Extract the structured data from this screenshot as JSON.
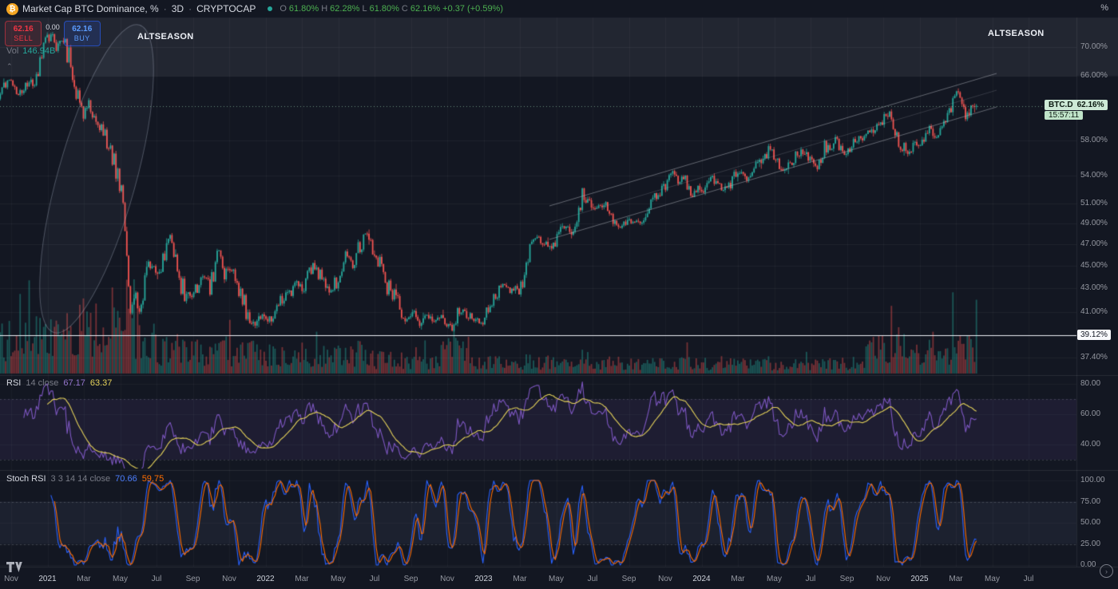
{
  "toolbar": {
    "logo_glyph": "₿",
    "symbol_title": "Market Cap BTC Dominance, %",
    "separator": "·",
    "interval": "3D",
    "exchange": "CRYPTOCAP",
    "ohlc": {
      "o_label": "O",
      "o": "61.80%",
      "h_label": "H",
      "h": "62.28%",
      "l_label": "L",
      "l": "61.80%",
      "c_label": "C",
      "c": "62.16%",
      "change": "+0.37 (+0.59%)"
    }
  },
  "trade_widget": {
    "sell_price": "62.16",
    "sell_label": "SELL",
    "spread": "0.00",
    "buy_price": "62.16",
    "buy_label": "BUY"
  },
  "volume_label": {
    "name": "Vol",
    "value": "146.94B"
  },
  "annotations": {
    "altseason_left": "ALTSEASON",
    "altseason_right": "ALTSEASON",
    "hline_label": "39.12%"
  },
  "price_label": {
    "symbol": "BTC.D",
    "price": "62.16%",
    "countdown": "15:57:11"
  },
  "rsi": {
    "title": "RSI",
    "params": "14 close",
    "value": "67.17",
    "ma_value": "63.37"
  },
  "stoch": {
    "title": "Stoch RSI",
    "params": "3 3 14 14 close",
    "value": "70.66",
    "ma_value": "59.75"
  },
  "axis": {
    "percent_button": "%"
  },
  "chart_data": {
    "type": "candlestick",
    "title": "Market Cap BTC Dominance",
    "interval": "3D",
    "exchange": "CRYPTOCAP",
    "scale": "log",
    "bar_months": 0.0995,
    "t_end": 53.2,
    "current_close": 62.16,
    "band_above": 66,
    "hline": 39.12,
    "ylim": [
      36.1,
      74.3
    ],
    "colors": {
      "up": "#26a69a",
      "down": "#ef5350",
      "volume_up": "rgba(38,166,154,0.45)",
      "volume_down": "rgba(239,83,80,0.45)",
      "rsi": "#7e57c2",
      "rsi_ma": "#e6d35a",
      "stoch_k": "#2962ff",
      "stoch_d": "#ff6d00",
      "price_line": "rgba(150,205,168,0.65)",
      "hline_color": "#eceff5",
      "channel": "rgba(178,181,190,0.5)",
      "band": "rgba(238,242,250,0.07)",
      "ellipse": "rgba(185,195,215,0.35)"
    },
    "ticks": {
      "price": [
        {
          "label": "70.00%",
          "v": 70
        },
        {
          "label": "66.00%",
          "v": 66
        },
        {
          "label": "58.00%",
          "v": 58
        },
        {
          "label": "54.00%",
          "v": 54
        },
        {
          "label": "51.00%",
          "v": 51
        },
        {
          "label": "49.00%",
          "v": 49
        },
        {
          "label": "47.00%",
          "v": 47
        },
        {
          "label": "45.00%",
          "v": 45
        },
        {
          "label": "43.00%",
          "v": 43
        },
        {
          "label": "41.00%",
          "v": 41
        },
        {
          "label": "37.40%",
          "v": 37.4
        }
      ],
      "rsi": [
        {
          "label": "80.00",
          "v": 80
        },
        {
          "label": "60.00",
          "v": 60
        },
        {
          "label": "40.00",
          "v": 40
        }
      ],
      "stoch": [
        {
          "label": "100.00",
          "v": 100
        },
        {
          "label": "75.00",
          "v": 75
        },
        {
          "label": "50.00",
          "v": 50
        },
        {
          "label": "25.00",
          "v": 25
        },
        {
          "label": "0.00",
          "v": 0
        }
      ],
      "time": [
        {
          "label": "Nov",
          "t": 0
        },
        {
          "label": "2021",
          "t": 2,
          "major": true
        },
        {
          "label": "Mar",
          "t": 4
        },
        {
          "label": "May",
          "t": 6
        },
        {
          "label": "Jul",
          "t": 8
        },
        {
          "label": "Sep",
          "t": 10
        },
        {
          "label": "Nov",
          "t": 12
        },
        {
          "label": "2022",
          "t": 14,
          "major": true
        },
        {
          "label": "Mar",
          "t": 16
        },
        {
          "label": "May",
          "t": 18
        },
        {
          "label": "Jul",
          "t": 20
        },
        {
          "label": "Sep",
          "t": 22
        },
        {
          "label": "Nov",
          "t": 24
        },
        {
          "label": "2023",
          "t": 26,
          "major": true
        },
        {
          "label": "Mar",
          "t": 28
        },
        {
          "label": "May",
          "t": 30
        },
        {
          "label": "Jul",
          "t": 32
        },
        {
          "label": "Sep",
          "t": 34
        },
        {
          "label": "Nov",
          "t": 36
        },
        {
          "label": "2024",
          "t": 38,
          "major": true
        },
        {
          "label": "Mar",
          "t": 40
        },
        {
          "label": "May",
          "t": 42
        },
        {
          "label": "Jul",
          "t": 44
        },
        {
          "label": "Sep",
          "t": 46
        },
        {
          "label": "Nov",
          "t": 48
        },
        {
          "label": "2025",
          "t": 50,
          "major": true
        },
        {
          "label": "Mar",
          "t": 52
        },
        {
          "label": "May",
          "t": 54
        },
        {
          "label": "Jul",
          "t": 56
        }
      ]
    },
    "price_anchors": [
      [
        -0.7,
        63.5
      ],
      [
        -0.3,
        65.0
      ],
      [
        0,
        65.5
      ],
      [
        0.4,
        63.8
      ],
      [
        0.8,
        64.6
      ],
      [
        1.2,
        65.5
      ],
      [
        1.6,
        68.0
      ],
      [
        2.0,
        70.8
      ],
      [
        2.25,
        72.6
      ],
      [
        2.5,
        69.5
      ],
      [
        2.8,
        71.3
      ],
      [
        3.1,
        69.3
      ],
      [
        3.4,
        66.0
      ],
      [
        3.7,
        62.5
      ],
      [
        4.0,
        61.0
      ],
      [
        4.3,
        62.6
      ],
      [
        4.6,
        60.0
      ],
      [
        5.0,
        59.6
      ],
      [
        5.4,
        57.0
      ],
      [
        5.8,
        54.8
      ],
      [
        6.1,
        52.5
      ],
      [
        6.35,
        47.5
      ],
      [
        6.55,
        40.3
      ],
      [
        6.8,
        43.5
      ],
      [
        7.05,
        40.5
      ],
      [
        7.3,
        42.8
      ],
      [
        7.7,
        45.6
      ],
      [
        8.0,
        43.9
      ],
      [
        8.4,
        45.9
      ],
      [
        8.75,
        47.8
      ],
      [
        9.1,
        45.0
      ],
      [
        9.5,
        42.6
      ],
      [
        10.0,
        41.9
      ],
      [
        10.5,
        44.3
      ],
      [
        11.0,
        43.0
      ],
      [
        11.35,
        46.8
      ],
      [
        11.8,
        44.2
      ],
      [
        12.2,
        44.6
      ],
      [
        12.6,
        42.6
      ],
      [
        13.0,
        41.0
      ],
      [
        13.4,
        39.9
      ],
      [
        13.8,
        40.8
      ],
      [
        14.2,
        40.2
      ],
      [
        14.7,
        41.6
      ],
      [
        15.2,
        42.3
      ],
      [
        15.7,
        43.6
      ],
      [
        16.1,
        42.7
      ],
      [
        16.6,
        45.2
      ],
      [
        17.0,
        44.0
      ],
      [
        17.5,
        42.8
      ],
      [
        18.0,
        44.2
      ],
      [
        18.4,
        46.3
      ],
      [
        18.8,
        44.9
      ],
      [
        19.2,
        46.6
      ],
      [
        19.55,
        48.4
      ],
      [
        19.9,
        47.0
      ],
      [
        20.3,
        45.3
      ],
      [
        20.7,
        43.2
      ],
      [
        21.2,
        42.0
      ],
      [
        21.7,
        40.4
      ],
      [
        22.1,
        41.0
      ],
      [
        22.45,
        39.8
      ],
      [
        22.8,
        40.9
      ],
      [
        23.2,
        40.2
      ],
      [
        23.6,
        40.7
      ],
      [
        24.0,
        40.3
      ],
      [
        24.3,
        39.5
      ],
      [
        24.7,
        41.4
      ],
      [
        25.1,
        40.6
      ],
      [
        25.6,
        40.2
      ],
      [
        26.0,
        40.5
      ],
      [
        26.5,
        41.9
      ],
      [
        27.0,
        43.4
      ],
      [
        27.5,
        42.7
      ],
      [
        28.0,
        42.9
      ],
      [
        28.4,
        46.1
      ],
      [
        28.8,
        47.7
      ],
      [
        29.2,
        47.5
      ],
      [
        29.6,
        46.6
      ],
      [
        30.0,
        47.6
      ],
      [
        30.5,
        48.8
      ],
      [
        31.0,
        47.9
      ],
      [
        31.45,
        51.8
      ],
      [
        31.8,
        50.9
      ],
      [
        32.2,
        50.4
      ],
      [
        32.7,
        50.9
      ],
      [
        33.1,
        49.7
      ],
      [
        33.5,
        48.7
      ],
      [
        34.0,
        49.3
      ],
      [
        34.5,
        49.1
      ],
      [
        35.0,
        50.3
      ],
      [
        35.5,
        52.0
      ],
      [
        36.0,
        52.9
      ],
      [
        36.45,
        54.3
      ],
      [
        36.8,
        53.2
      ],
      [
        37.1,
        53.6
      ],
      [
        37.4,
        51.9
      ],
      [
        37.8,
        52.7
      ],
      [
        38.2,
        52.3
      ],
      [
        38.5,
        54.1
      ],
      [
        38.9,
        52.7
      ],
      [
        39.3,
        52.5
      ],
      [
        39.8,
        53.9
      ],
      [
        40.2,
        54.7
      ],
      [
        40.5,
        53.5
      ],
      [
        40.9,
        54.9
      ],
      [
        41.3,
        55.3
      ],
      [
        41.7,
        56.9
      ],
      [
        42.1,
        55.9
      ],
      [
        42.5,
        54.6
      ],
      [
        43.0,
        55.7
      ],
      [
        43.5,
        56.8
      ],
      [
        44.0,
        55.9
      ],
      [
        44.35,
        55.0
      ],
      [
        44.8,
        57.3
      ],
      [
        45.1,
        56.9
      ],
      [
        45.4,
        58.1
      ],
      [
        45.8,
        56.3
      ],
      [
        46.2,
        57.4
      ],
      [
        46.7,
        58.2
      ],
      [
        47.1,
        58.5
      ],
      [
        47.6,
        59.9
      ],
      [
        48.0,
        60.4
      ],
      [
        48.35,
        61.6
      ],
      [
        48.7,
        59.1
      ],
      [
        49.0,
        57.8
      ],
      [
        49.3,
        56.1
      ],
      [
        49.7,
        57.9
      ],
      [
        50.1,
        57.5
      ],
      [
        50.45,
        59.4
      ],
      [
        50.8,
        58.5
      ],
      [
        51.2,
        60.0
      ],
      [
        51.5,
        61.3
      ],
      [
        51.85,
        62.9
      ],
      [
        52.1,
        64.1
      ],
      [
        52.35,
        61.5
      ],
      [
        52.6,
        60.9
      ],
      [
        52.9,
        61.9
      ],
      [
        53.2,
        62.16
      ]
    ]
  }
}
